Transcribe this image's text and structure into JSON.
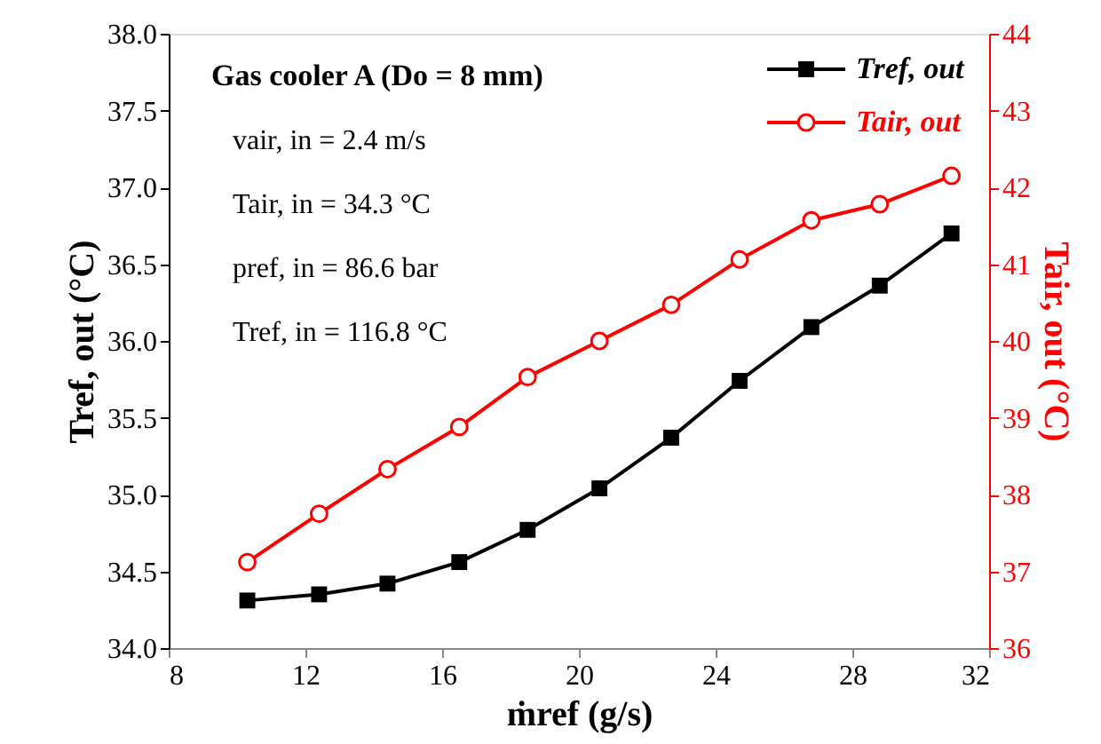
{
  "chart_data": {
    "type": "line",
    "xlabel": "ṁref (g/s)",
    "ylabel": "Tref, out (°C)",
    "y2label": "Tair, out (°C)",
    "x": [
      10.3,
      12.4,
      14.4,
      16.5,
      18.5,
      20.6,
      22.7,
      24.7,
      26.8,
      28.8,
      30.9
    ],
    "series": [
      {
        "name": "Tref, out",
        "color": "#000000",
        "marker": "square",
        "values": [
          34.31,
          34.35,
          34.42,
          34.56,
          34.77,
          35.04,
          35.37,
          35.74,
          36.09,
          36.36,
          36.7
        ]
      },
      {
        "name": "Tair, out",
        "color": "#ff0000",
        "marker": "circle",
        "axis": "y2",
        "values": [
          37.12,
          37.75,
          38.33,
          38.88,
          39.53,
          40.0,
          40.47,
          41.06,
          41.57,
          41.78,
          42.15
        ]
      }
    ],
    "xlim": [
      8,
      32
    ],
    "xticks": [
      8,
      12,
      16,
      20,
      24,
      28,
      32
    ],
    "ylim": [
      34,
      38
    ],
    "yticks": [
      {
        "value": 34,
        "label": "34.0"
      },
      34.5,
      {
        "value": 35,
        "label": "35.0"
      },
      35.5,
      {
        "value": 36,
        "label": "36.0"
      },
      36.5,
      {
        "value": 37,
        "label": "37.0"
      },
      37.5,
      {
        "value": 38,
        "label": "38.0"
      }
    ],
    "y2lim": [
      36,
      44
    ],
    "y2ticks": [
      36,
      37,
      38,
      39,
      40,
      41,
      42,
      43,
      44
    ],
    "annotations": [
      "Gas cooler A (Do = 8 mm)",
      "vair, in = 2.4 m/s",
      "Tair, in = 34.3 °C",
      "pref, in = 86.6 bar",
      "Tref, in = 116.8 °C"
    ],
    "legend": "top right",
    "grid": false
  }
}
